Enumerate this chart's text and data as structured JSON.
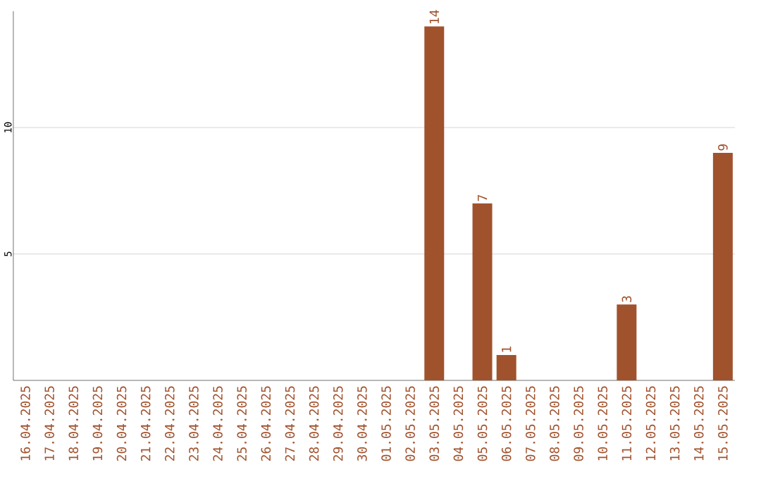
{
  "chart_data": {
    "type": "bar",
    "categories": [
      "16.04.2025",
      "17.04.2025",
      "18.04.2025",
      "19.04.2025",
      "20.04.2025",
      "21.04.2025",
      "22.04.2025",
      "23.04.2025",
      "24.04.2025",
      "25.04.2025",
      "26.04.2025",
      "27.04.2025",
      "28.04.2025",
      "29.04.2025",
      "30.04.2025",
      "01.05.2025",
      "02.05.2025",
      "03.05.2025",
      "04.05.2025",
      "05.05.2025",
      "06.05.2025",
      "07.05.2025",
      "08.05.2025",
      "09.05.2025",
      "10.05.2025",
      "11.05.2025",
      "12.05.2025",
      "13.05.2025",
      "14.05.2025",
      "15.05.2025"
    ],
    "values": [
      0,
      0,
      0,
      0,
      0,
      0,
      0,
      0,
      0,
      0,
      0,
      0,
      0,
      0,
      0,
      0,
      0,
      14,
      0,
      7,
      1,
      0,
      0,
      0,
      0,
      3,
      0,
      0,
      0,
      9
    ],
    "value_labels": [
      null,
      null,
      null,
      null,
      null,
      null,
      null,
      null,
      null,
      null,
      null,
      null,
      null,
      null,
      null,
      null,
      null,
      "14",
      null,
      "7",
      "1",
      null,
      null,
      null,
      null,
      "3",
      null,
      null,
      null,
      "9"
    ],
    "color": "#a0522d",
    "ylim": [
      0,
      14.6
    ],
    "yticks": [
      5,
      10
    ],
    "grid": "y"
  }
}
